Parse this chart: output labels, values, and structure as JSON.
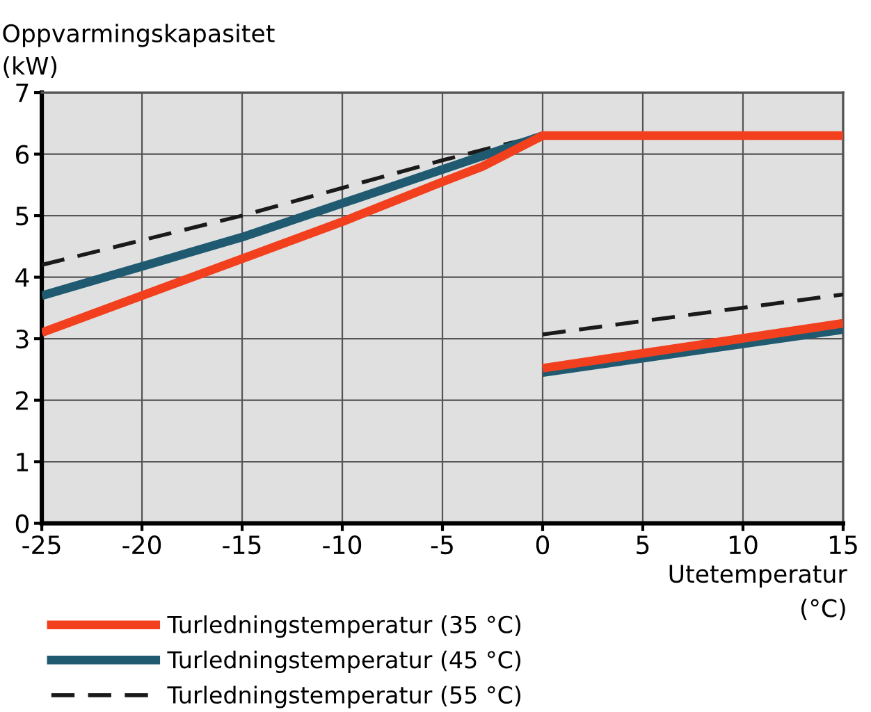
{
  "chart_data": {
    "type": "line",
    "ylabel": "Oppvarmingskapasitet\n(kW)",
    "xlabel": "Utetemperatur\n(°C)",
    "xlim": [
      -25,
      15
    ],
    "xticks": [
      -25,
      -20,
      -15,
      -10,
      -5,
      0,
      5,
      10,
      15
    ],
    "ylim": [
      0,
      7
    ],
    "yticks": [
      0,
      1,
      2,
      3,
      4,
      5,
      6,
      7
    ],
    "grid": true,
    "legend": "bottom left",
    "marker": "none",
    "series": [
      {
        "name": "Turledningstemperatur (35 °C)",
        "color": "#f2401f",
        "line_style": "solid",
        "x": [
          -25,
          -15,
          -10,
          -5,
          -3,
          0,
          15
        ],
        "values": [
          3.1,
          4.3,
          4.9,
          5.55,
          5.8,
          6.3,
          6.3
        ]
      },
      {
        "name": "Turledningstemperatur (45 °C)",
        "color": "#1f5a70",
        "line_style": "solid",
        "x": [
          -25,
          -15,
          -10,
          -5,
          0
        ],
        "values": [
          3.7,
          4.65,
          5.2,
          5.75,
          6.3
        ]
      },
      {
        "name": "Turledningstemperatur (55 °C)",
        "color": "#1a1a1a",
        "line_style": "dashed",
        "x": [
          -25,
          -15,
          -5,
          -2,
          0
        ],
        "values": [
          4.2,
          5.0,
          5.9,
          6.15,
          6.3
        ]
      },
      {
        "color": "#f2401f",
        "line_style": "solid",
        "x": [
          0,
          15
        ],
        "values": [
          2.52,
          3.25
        ]
      },
      {
        "color": "#1f5a70",
        "line_style": "solid",
        "x": [
          0,
          15
        ],
        "values": [
          2.45,
          3.15
        ]
      },
      {
        "color": "#1a1a1a",
        "line_style": "dashed",
        "x": [
          0,
          15
        ],
        "values": [
          3.07,
          3.72
        ]
      }
    ]
  }
}
